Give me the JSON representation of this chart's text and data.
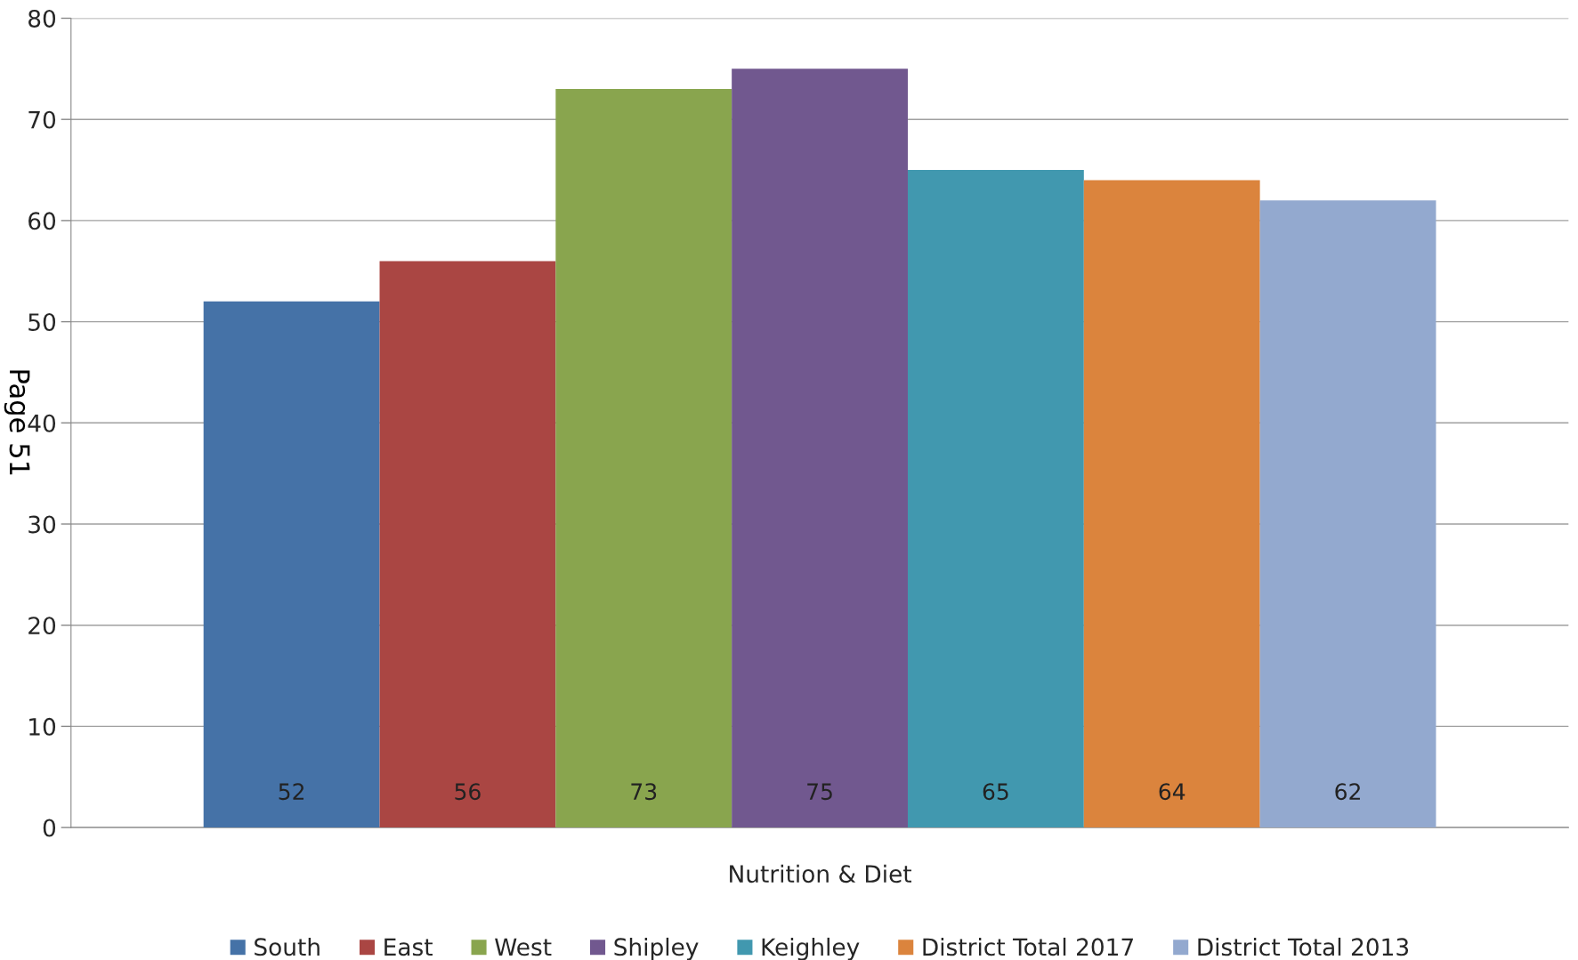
{
  "chart_data": {
    "type": "bar",
    "categories": [
      "Nutrition & Diet"
    ],
    "series": [
      {
        "name": "South",
        "color": "#4572a7",
        "values": [
          52
        ]
      },
      {
        "name": "East",
        "color": "#aa4643",
        "values": [
          56
        ]
      },
      {
        "name": "West",
        "color": "#89a54e",
        "values": [
          73
        ]
      },
      {
        "name": "Shipley",
        "color": "#71588f",
        "values": [
          75
        ]
      },
      {
        "name": "Keighley",
        "color": "#4198af",
        "values": [
          65
        ]
      },
      {
        "name": "District Total 2017",
        "color": "#db843d",
        "values": [
          64
        ]
      },
      {
        "name": "District Total 2013",
        "color": "#93a9cf",
        "values": [
          62
        ]
      }
    ],
    "ylim": [
      0,
      80
    ],
    "yticks": [
      0,
      10,
      20,
      30,
      40,
      50,
      60,
      70,
      80
    ],
    "grid": "y",
    "legend": "bottom",
    "data_labels": true,
    "annotations": [
      "Page 51"
    ]
  }
}
